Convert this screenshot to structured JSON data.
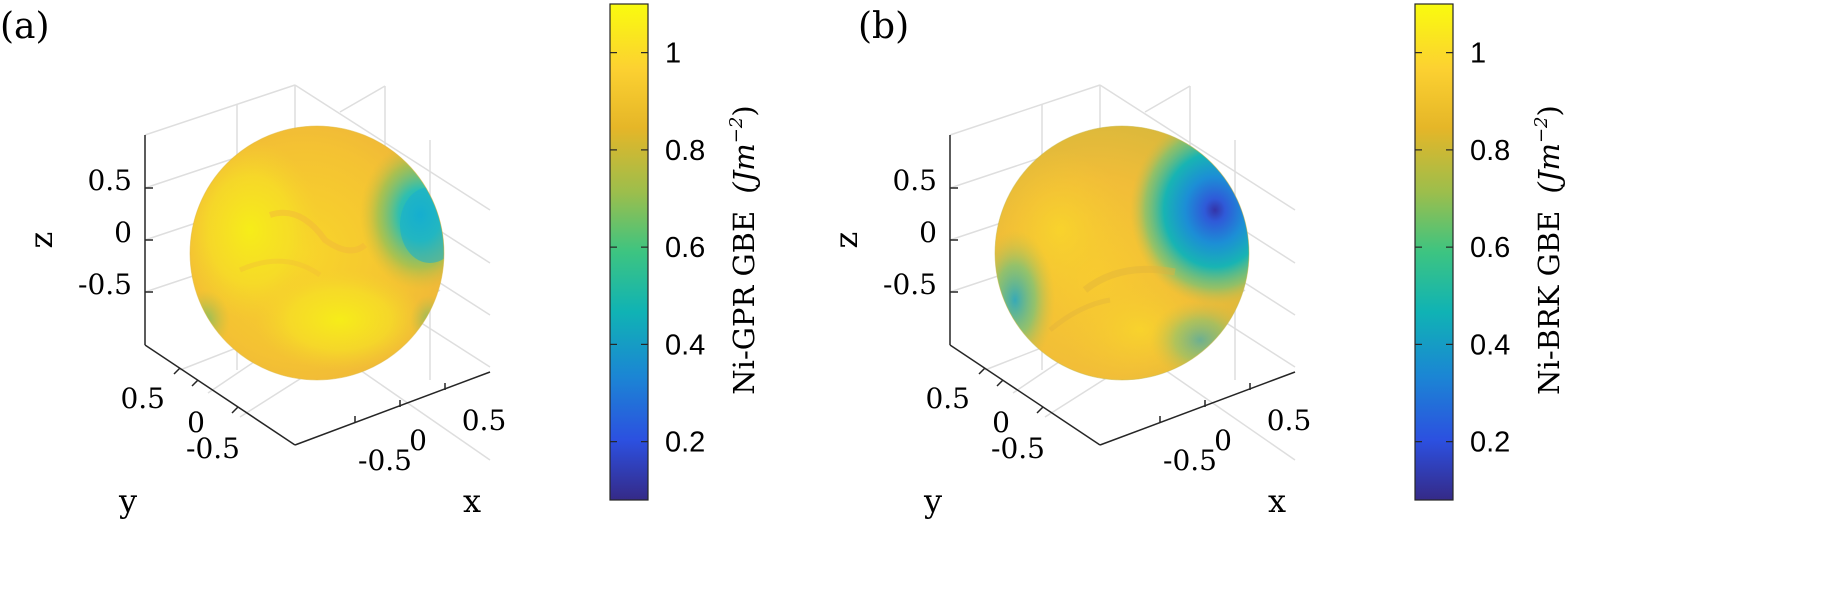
{
  "chart_data": [
    {
      "type": "heatmap",
      "panel_label": "(a)",
      "xlabel": "x",
      "ylabel": "y",
      "zlabel": "z",
      "x_ticks": [
        "-0.5",
        "0",
        "0.5"
      ],
      "y_ticks": [
        "-0.5",
        "0",
        "0.5"
      ],
      "z_ticks": [
        "0.5",
        "0",
        "-0.5"
      ],
      "grid": true,
      "surface": "unit sphere colored by grain boundary energy",
      "colorbar": {
        "label": "Ni-GPR GBE",
        "unit": "(Jm",
        "unit_exp": "−2",
        "unit_close": ")",
        "range": [
          0.08,
          1.1
        ],
        "ticks": [
          "1",
          "0.8",
          "0.6",
          "0.4",
          "0.2"
        ],
        "tick_values": [
          1,
          0.8,
          0.6,
          0.4,
          0.2
        ]
      },
      "features": [
        {
          "region": "upper right (near x=0.7, z=0.4)",
          "value": 0.55
        },
        {
          "region": "left and lower center",
          "value": 1.05
        },
        {
          "region": "remaining surface",
          "value": 0.93
        }
      ]
    },
    {
      "type": "heatmap",
      "panel_label": "(b)",
      "xlabel": "x",
      "ylabel": "y",
      "zlabel": "z",
      "x_ticks": [
        "-0.5",
        "0",
        "0.5"
      ],
      "y_ticks": [
        "-0.5",
        "0",
        "0.5"
      ],
      "z_ticks": [
        "0.5",
        "0",
        "-0.5"
      ],
      "grid": true,
      "surface": "unit sphere colored by grain boundary energy",
      "colorbar": {
        "label": "Ni-BRK GBE",
        "unit": "(Jm",
        "unit_exp": "−2",
        "unit_close": ")",
        "range": [
          0.08,
          1.1
        ],
        "ticks": [
          "1",
          "0.8",
          "0.6",
          "0.4",
          "0.2"
        ],
        "tick_values": [
          1,
          0.8,
          0.6,
          0.4,
          0.2
        ]
      },
      "features": [
        {
          "region": "upper right (near x=0.7, z=0.5)",
          "value": 0.15
        },
        {
          "region": "upper right band",
          "value": 0.5
        },
        {
          "region": "lower left edge",
          "value": 0.6
        },
        {
          "region": "left and lower center",
          "value": 0.95
        }
      ]
    }
  ],
  "colors": {
    "parula": [
      "#352a87",
      "#2c50e0",
      "#1b86d4",
      "#10b3b4",
      "#3dc481",
      "#9cbe4c",
      "#e5b628",
      "#fcd131",
      "#f9fb0e"
    ],
    "grid": "#dedede",
    "axis": "#262626"
  }
}
